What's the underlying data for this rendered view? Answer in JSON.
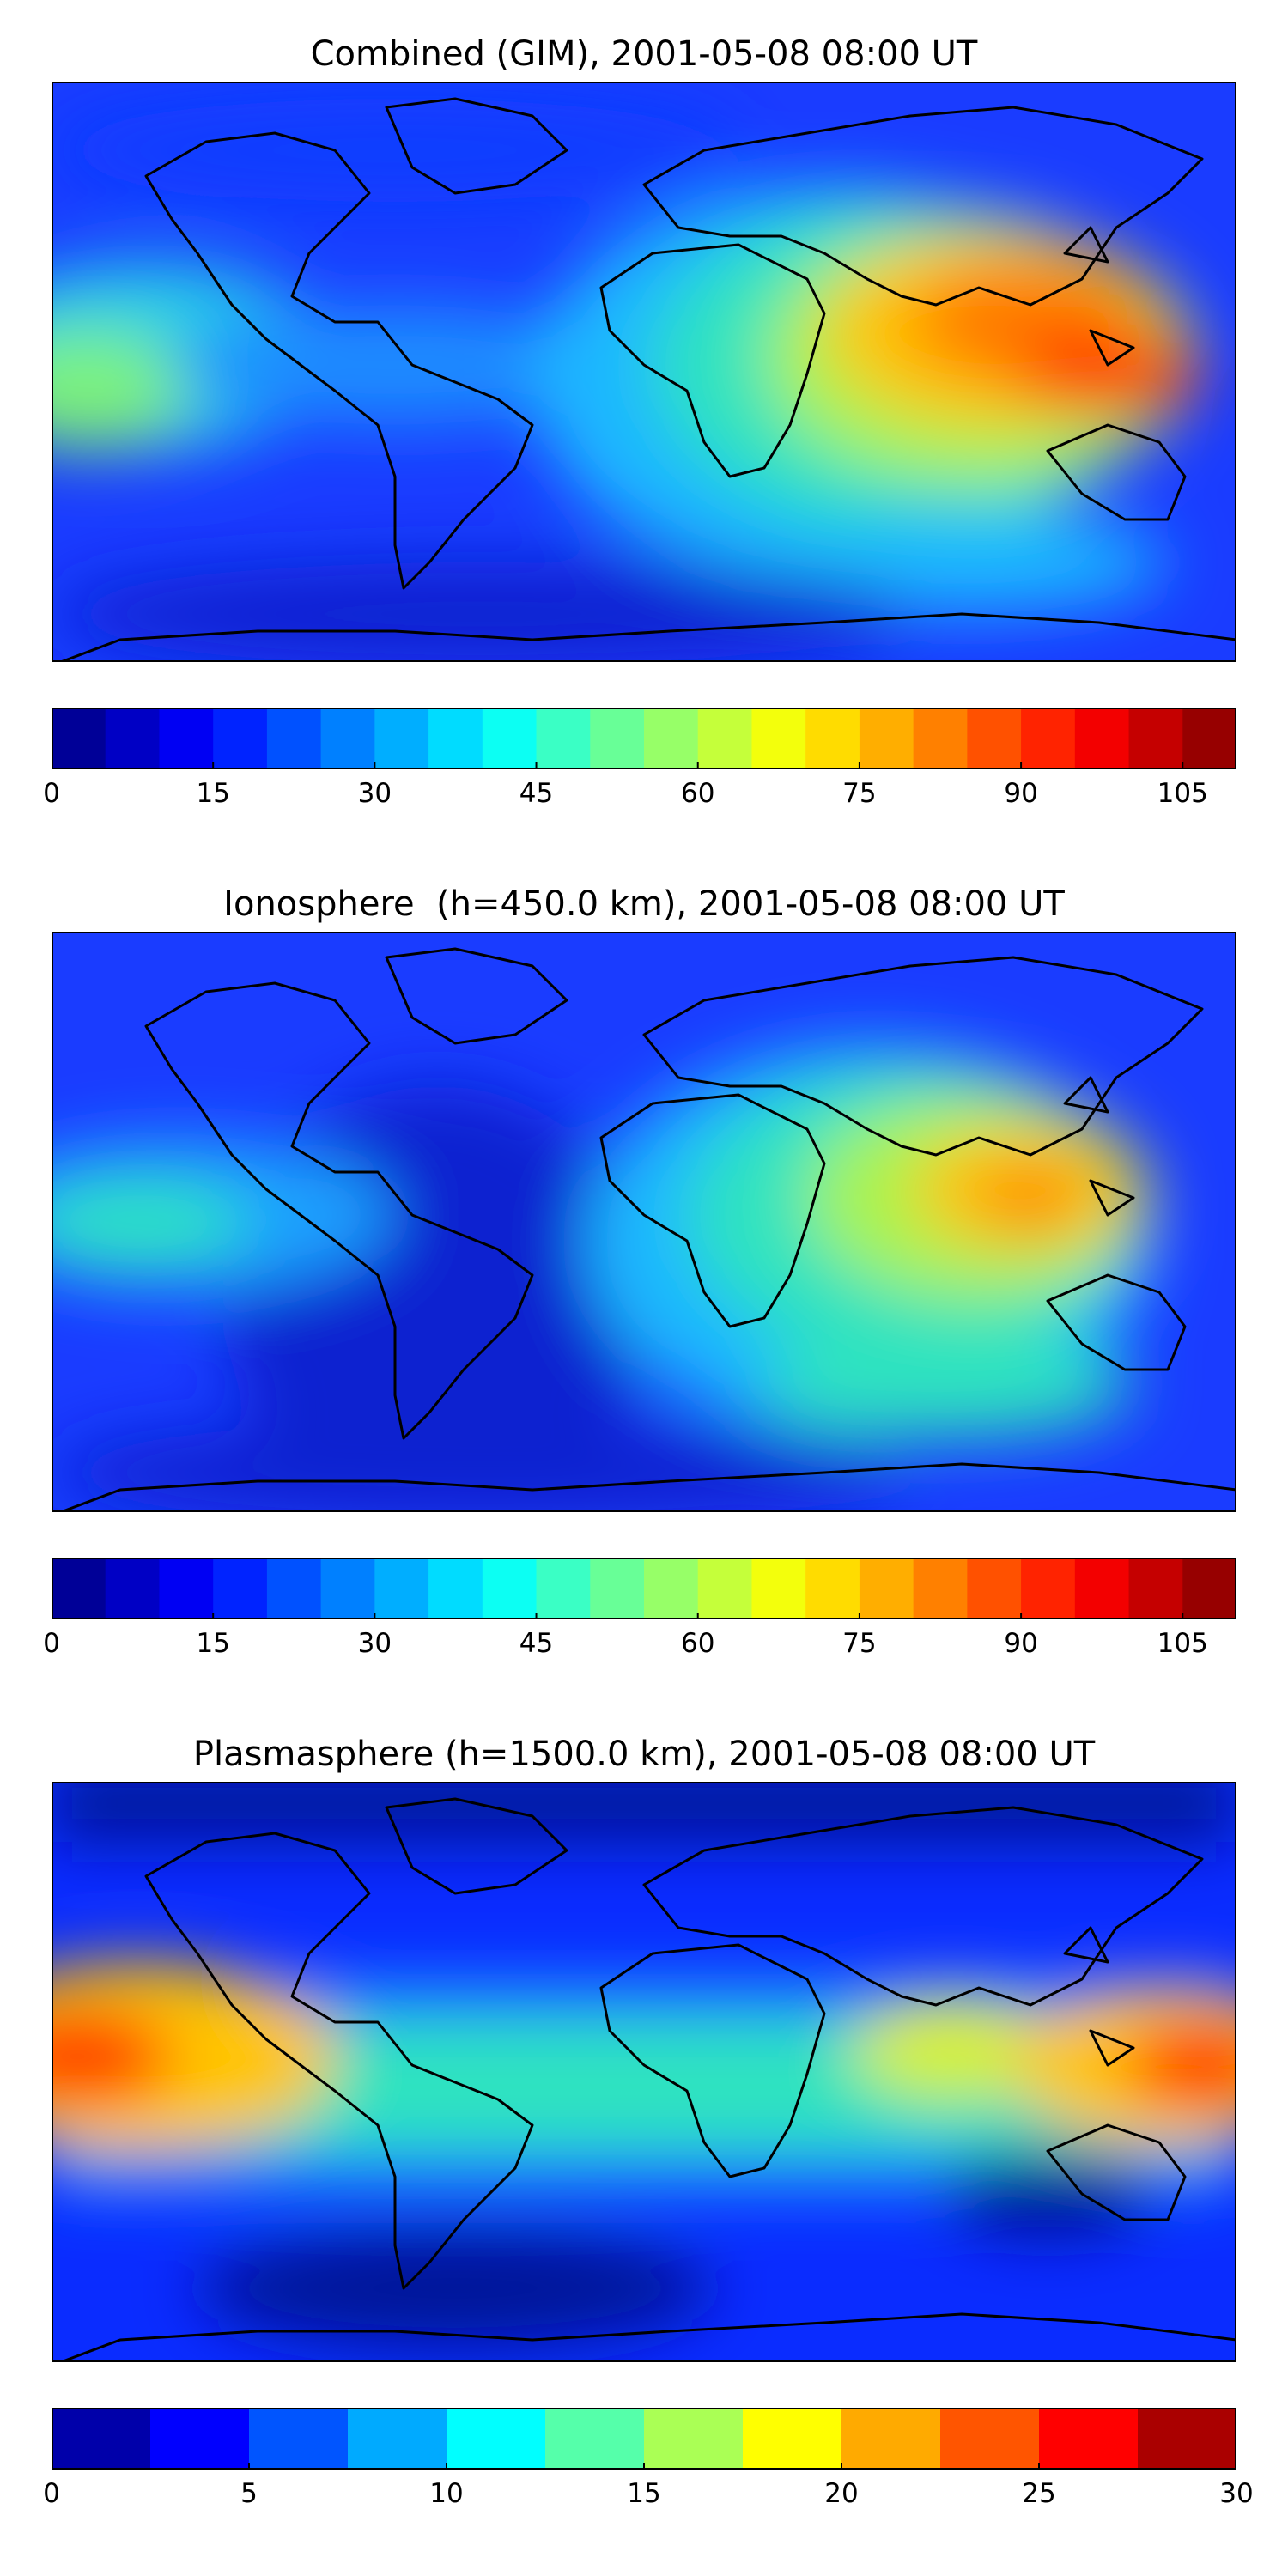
{
  "panels": [
    {
      "title": "Combined (GIM), 2001-05-08 08:00 UT",
      "colorbar": {
        "min": 0,
        "max": 110,
        "step": 5,
        "ticks": [
          "0",
          "15",
          "30",
          "45",
          "60",
          "75",
          "90",
          "105"
        ]
      }
    },
    {
      "title": "Ionosphere  (h=450.0 km), 2001-05-08 08:00 UT",
      "colorbar": {
        "min": 0,
        "max": 110,
        "step": 5,
        "ticks": [
          "0",
          "15",
          "30",
          "45",
          "60",
          "75",
          "90",
          "105"
        ]
      }
    },
    {
      "title": "Plasmasphere (h=1500.0 km), 2001-05-08 08:00 UT",
      "colorbar": {
        "min": 0,
        "max": 30,
        "step": 2.5,
        "ticks": [
          "0",
          "5",
          "10",
          "15",
          "20",
          "25",
          "30"
        ]
      }
    }
  ],
  "colormap": "jet",
  "coastline_color": "#000000"
}
